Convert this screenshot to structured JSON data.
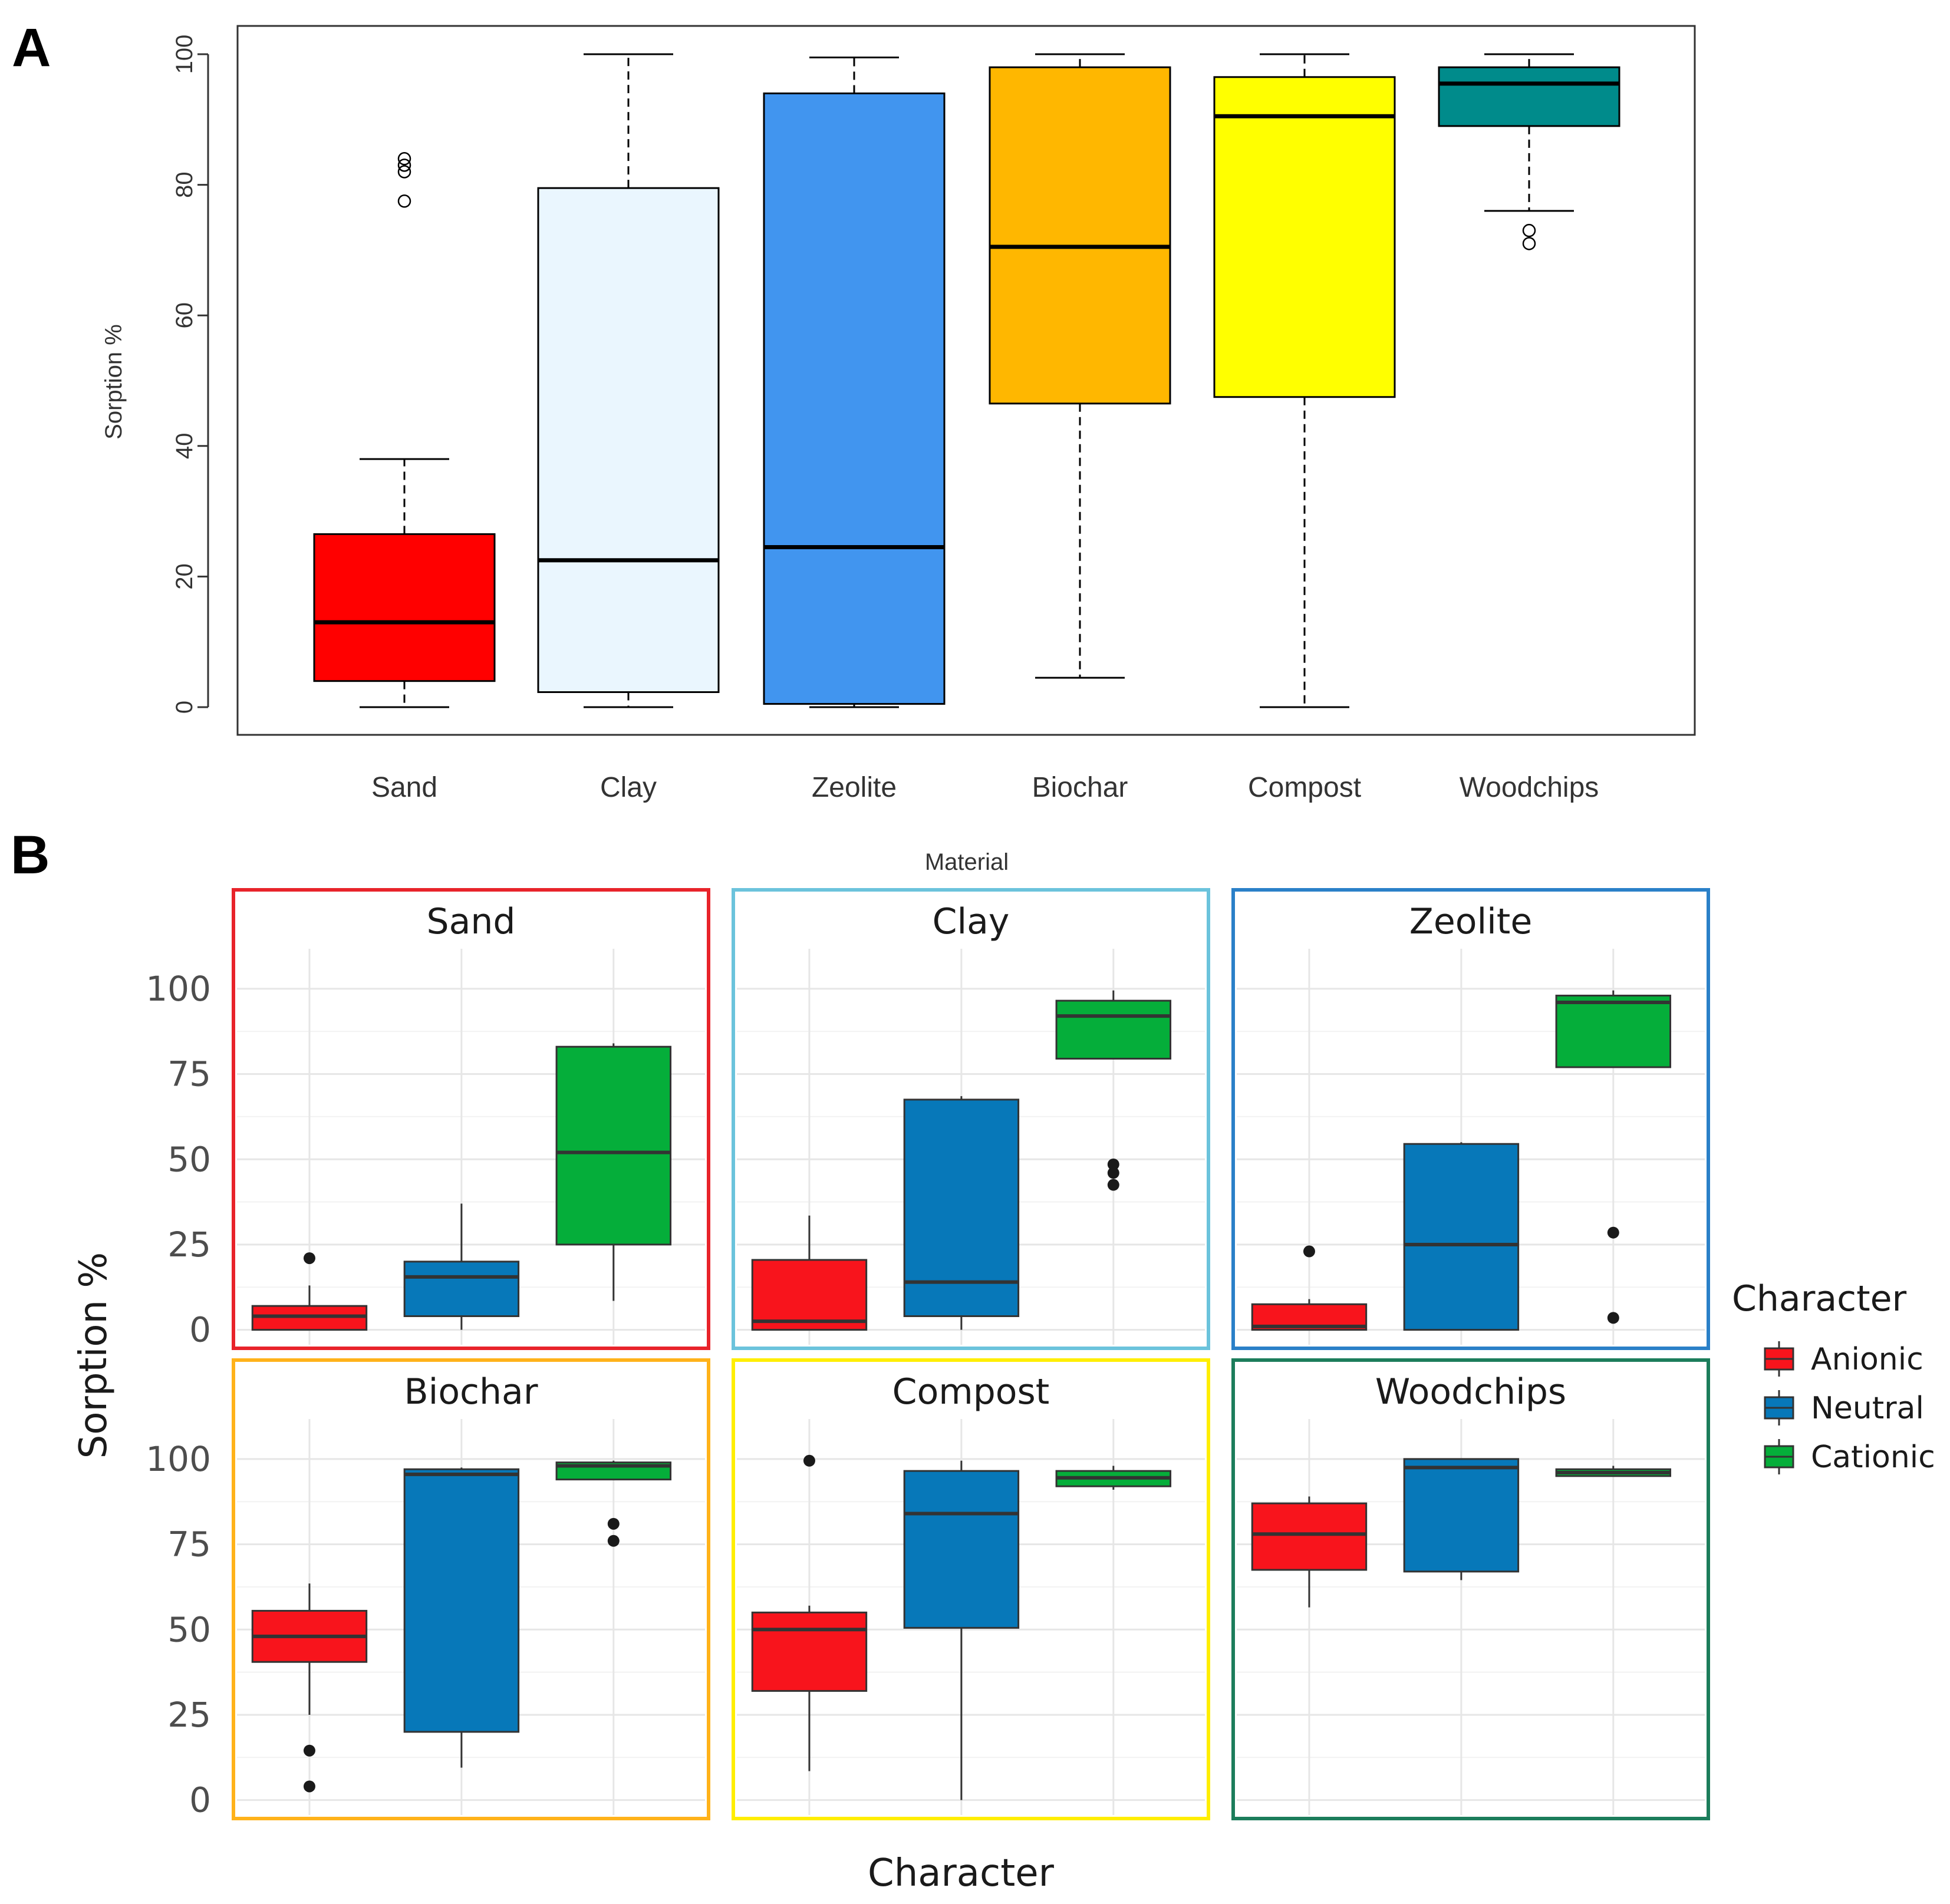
{
  "chart_data": [
    {
      "panel": "A",
      "type": "boxplot",
      "xlabel": "Material",
      "ylabel": "Sorption %",
      "ylim": [
        0,
        100
      ],
      "yticks": [
        "0",
        "20",
        "40",
        "60",
        "80",
        "100"
      ],
      "categories": [
        "Sand",
        "Clay",
        "Zeolite",
        "Biochar",
        "Compost",
        "Woodchips"
      ],
      "colors": [
        "#ff0000",
        "#eaf6fe",
        "#4195ef",
        "#ffb700",
        "#ffff00",
        "#008b8b"
      ],
      "boxes": [
        {
          "name": "Sand",
          "min": 0,
          "q1": 4,
          "median": 13,
          "q3": 26.5,
          "max": 38,
          "outliers": [
            77.5,
            82,
            83,
            84
          ]
        },
        {
          "name": "Clay",
          "min": 0,
          "q1": 2.3,
          "median": 22.5,
          "q3": 79.5,
          "max": 100,
          "outliers": []
        },
        {
          "name": "Zeolite",
          "min": 0,
          "q1": 0.5,
          "median": 24.5,
          "q3": 94,
          "max": 99.5,
          "outliers": []
        },
        {
          "name": "Biochar",
          "min": 4.5,
          "q1": 46.5,
          "median": 70.5,
          "q3": 98,
          "max": 100,
          "outliers": []
        },
        {
          "name": "Compost",
          "min": 0,
          "q1": 47.5,
          "median": 90.5,
          "q3": 96.5,
          "max": 100,
          "outliers": []
        },
        {
          "name": "Woodchips",
          "min": 76,
          "q1": 89,
          "median": 95.5,
          "q3": 98,
          "max": 100,
          "outliers": [
            71,
            73
          ]
        }
      ]
    },
    {
      "panel": "B",
      "type": "boxplot-facet",
      "xlabel": "Character",
      "ylabel": "Sorption %",
      "ylim": [
        -3,
        110
      ],
      "yticks": [
        "0",
        "25",
        "50",
        "75",
        "100"
      ],
      "legend": {
        "title": "Character",
        "position": "right",
        "entries": [
          {
            "label": "Anionic",
            "color": "#f8141c"
          },
          {
            "label": "Neutral",
            "color": "#0778b9"
          },
          {
            "label": "Cationic",
            "color": "#05ae3a"
          }
        ]
      },
      "facets": [
        {
          "name": "Sand",
          "border": "#e8232a",
          "boxes": [
            {
              "min": 0,
              "q1": 0,
              "median": 4,
              "q3": 7,
              "max": 13,
              "outliers": [
                21
              ]
            },
            {
              "min": 0,
              "q1": 4,
              "median": 15.5,
              "q3": 20,
              "max": 37,
              "outliers": []
            },
            {
              "min": 8.5,
              "q1": 25,
              "median": 52,
              "q3": 83,
              "max": 84,
              "outliers": []
            }
          ]
        },
        {
          "name": "Clay",
          "border": "#6bc3dc",
          "boxes": [
            {
              "min": 0,
              "q1": 0,
              "median": 2.5,
              "q3": 20.5,
              "max": 33.5,
              "outliers": []
            },
            {
              "min": 0,
              "q1": 4,
              "median": 14,
              "q3": 67.5,
              "max": 68.5,
              "outliers": []
            },
            {
              "min": 79.5,
              "q1": 79.5,
              "median": 92,
              "q3": 96.5,
              "max": 99.5,
              "outliers": [
                42.5,
                46,
                48.5
              ]
            }
          ]
        },
        {
          "name": "Zeolite",
          "border": "#2a80c8",
          "boxes": [
            {
              "min": 0,
              "q1": 0,
              "median": 1,
              "q3": 7.5,
              "max": 9,
              "outliers": [
                23
              ]
            },
            {
              "min": 0,
              "q1": 0,
              "median": 25,
              "q3": 54.5,
              "max": 55,
              "outliers": []
            },
            {
              "min": 77,
              "q1": 77,
              "median": 96,
              "q3": 98,
              "max": 99.5,
              "outliers": [
                3.5,
                28.5
              ]
            }
          ]
        },
        {
          "name": "Biochar",
          "border": "#ffb21a",
          "boxes": [
            {
              "min": 25,
              "q1": 40.5,
              "median": 48,
              "q3": 55.5,
              "max": 63.5,
              "outliers": [
                4,
                14.5
              ]
            },
            {
              "min": 9.5,
              "q1": 20,
              "median": 95.5,
              "q3": 97,
              "max": 97.5,
              "outliers": []
            },
            {
              "min": 94,
              "q1": 94,
              "median": 98,
              "q3": 99,
              "max": 99.5,
              "outliers": [
                76,
                81
              ]
            }
          ]
        },
        {
          "name": "Compost",
          "border": "#ffee00",
          "boxes": [
            {
              "min": 8.5,
              "q1": 32,
              "median": 50,
              "q3": 55,
              "max": 57,
              "outliers": [
                99.5
              ]
            },
            {
              "min": 0,
              "q1": 50.5,
              "median": 84,
              "q3": 96.5,
              "max": 99.5,
              "outliers": []
            },
            {
              "min": 91,
              "q1": 92,
              "median": 94.5,
              "q3": 96.5,
              "max": 98,
              "outliers": []
            }
          ]
        },
        {
          "name": "Woodchips",
          "border": "#1c7d5b",
          "boxes": [
            {
              "min": 56.5,
              "q1": 67.5,
              "median": 78,
              "q3": 87,
              "max": 89,
              "outliers": []
            },
            {
              "min": 64.5,
              "q1": 67,
              "median": 97.5,
              "q3": 100,
              "max": 100,
              "outliers": []
            },
            {
              "min": 95,
              "q1": 95,
              "median": 96,
              "q3": 97,
              "max": 98,
              "outliers": []
            }
          ]
        }
      ]
    }
  ]
}
